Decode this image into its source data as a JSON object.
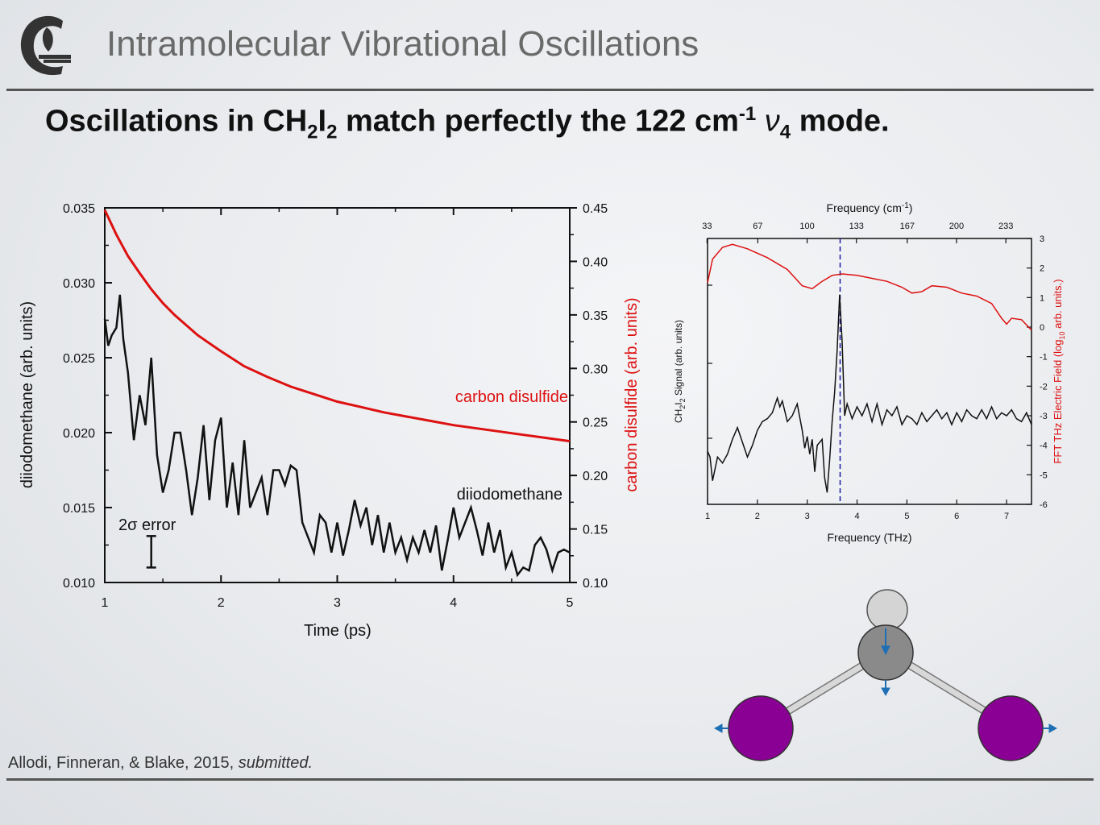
{
  "header": {
    "title": "Intramolecular Vibrational Oscillations",
    "headline": {
      "part1": "Oscillations in CH",
      "sub1": "2",
      "part2": "I",
      "sub2": "2",
      "part3": " match perfectly the 122 cm",
      "sup1": "-1",
      "nu": " ν",
      "sub3": "4",
      "part4": " mode."
    }
  },
  "citation": {
    "authors": "Allodi, Finneran, & Blake, 2015, ",
    "status": "submitted."
  },
  "colors": {
    "red": "#dd1111",
    "black": "#111111",
    "dashed": "#1a1aa0",
    "iodine": "#8b0094",
    "carbon": "#8a8a8a",
    "hydrogen": "#d4d4d4",
    "arrow": "#1f6fb5"
  },
  "chart_data": [
    {
      "type": "line",
      "xlabel": "Time (ps)",
      "ylabel": "diiodomethane (arb. units)",
      "y2label": "carbon disulfide (arb. units)",
      "xlim": [
        1,
        5
      ],
      "ylim": [
        0.01,
        0.035
      ],
      "y2lim": [
        0.1,
        0.45
      ],
      "xticks": [
        "1",
        "2",
        "3",
        "4",
        "5"
      ],
      "yticks": [
        "0.010",
        "0.015",
        "0.020",
        "0.025",
        "0.030",
        "0.035"
      ],
      "y2ticks": [
        "0.10",
        "0.15",
        "0.20",
        "0.25",
        "0.30",
        "0.35",
        "0.40",
        "0.45"
      ],
      "annotations": {
        "red_label": "carbon disulfide",
        "black_label": "diiodomethane",
        "error_label": "2σ error"
      },
      "error_bar": {
        "x": 1.4,
        "y_low": 0.011,
        "y_high": 0.0131
      },
      "series": [
        {
          "name": "carbon disulfide",
          "axis": "right",
          "x": [
            1.0,
            1.1,
            1.2,
            1.3,
            1.4,
            1.5,
            1.6,
            1.8,
            2.0,
            2.2,
            2.4,
            2.6,
            2.8,
            3.0,
            3.2,
            3.4,
            3.6,
            3.8,
            4.0,
            4.2,
            4.4,
            4.6,
            4.8,
            5.0
          ],
          "y": [
            0.448,
            0.425,
            0.405,
            0.389,
            0.374,
            0.361,
            0.35,
            0.331,
            0.316,
            0.302,
            0.292,
            0.283,
            0.276,
            0.269,
            0.264,
            0.259,
            0.255,
            0.251,
            0.247,
            0.244,
            0.241,
            0.238,
            0.235,
            0.232
          ]
        },
        {
          "name": "diiodomethane",
          "axis": "left",
          "x": [
            1.0,
            1.03,
            1.06,
            1.1,
            1.13,
            1.16,
            1.2,
            1.25,
            1.3,
            1.35,
            1.4,
            1.45,
            1.5,
            1.55,
            1.6,
            1.65,
            1.7,
            1.75,
            1.8,
            1.85,
            1.9,
            1.95,
            2.0,
            2.05,
            2.1,
            2.15,
            2.2,
            2.25,
            2.3,
            2.35,
            2.4,
            2.45,
            2.5,
            2.55,
            2.6,
            2.65,
            2.7,
            2.75,
            2.8,
            2.85,
            2.9,
            2.95,
            3.0,
            3.05,
            3.1,
            3.15,
            3.2,
            3.25,
            3.3,
            3.35,
            3.4,
            3.45,
            3.5,
            3.55,
            3.6,
            3.65,
            3.7,
            3.75,
            3.8,
            3.85,
            3.9,
            3.95,
            4.0,
            4.05,
            4.1,
            4.15,
            4.2,
            4.25,
            4.3,
            4.35,
            4.4,
            4.45,
            4.5,
            4.55,
            4.6,
            4.65,
            4.7,
            4.75,
            4.8,
            4.85,
            4.9,
            4.95,
            5.0
          ],
          "y": [
            0.0276,
            0.0258,
            0.0265,
            0.027,
            0.0292,
            0.0262,
            0.024,
            0.0195,
            0.0225,
            0.0205,
            0.025,
            0.0185,
            0.016,
            0.0175,
            0.02,
            0.02,
            0.0175,
            0.0145,
            0.017,
            0.0205,
            0.0155,
            0.0195,
            0.021,
            0.015,
            0.018,
            0.0145,
            0.0195,
            0.015,
            0.016,
            0.017,
            0.0145,
            0.0175,
            0.0175,
            0.0165,
            0.0178,
            0.0175,
            0.014,
            0.013,
            0.012,
            0.0145,
            0.014,
            0.012,
            0.014,
            0.0118,
            0.0135,
            0.0155,
            0.0138,
            0.015,
            0.0125,
            0.0145,
            0.012,
            0.014,
            0.012,
            0.013,
            0.0115,
            0.013,
            0.012,
            0.0135,
            0.012,
            0.0138,
            0.0108,
            0.0128,
            0.015,
            0.013,
            0.014,
            0.015,
            0.0135,
            0.0118,
            0.014,
            0.012,
            0.0135,
            0.011,
            0.012,
            0.0105,
            0.011,
            0.0108,
            0.0125,
            0.013,
            0.0122,
            0.0108,
            0.012,
            0.0122,
            0.012
          ]
        }
      ]
    },
    {
      "type": "line",
      "xlabel": "Frequency (THz)",
      "x2label_main": "Frequency (cm",
      "x2label_sup": "-1",
      "x2label_end": ")",
      "ylabel_main": "CH",
      "ylabel_sub1": "2",
      "ylabel_mid": "I",
      "ylabel_sub2": "2",
      "ylabel_end": " Signal (arb. units)",
      "y2label_main": "FFT THz Electric Field (log",
      "y2label_sub": "10",
      "y2label_end": " arb. units.)",
      "xlim": [
        1,
        7.5
      ],
      "y2lim": [
        -6,
        3
      ],
      "xticks": [
        "1",
        "2",
        "3",
        "4",
        "5",
        "6",
        "7"
      ],
      "x2ticks": [
        "33",
        "67",
        "100",
        "133",
        "167",
        "200",
        "233"
      ],
      "y2ticks": [
        "3",
        "2",
        "1",
        "0",
        "-1",
        "-2",
        "-3",
        "-4",
        "-5",
        "-6"
      ],
      "marker_line_x": 3.66,
      "series": [
        {
          "name": "FFT THz Electric Field",
          "axis": "right",
          "x": [
            1.0,
            1.1,
            1.3,
            1.5,
            1.8,
            2.2,
            2.6,
            2.9,
            3.1,
            3.3,
            3.5,
            3.7,
            4.0,
            4.3,
            4.6,
            4.9,
            5.1,
            5.3,
            5.5,
            5.8,
            6.1,
            6.4,
            6.7,
            6.9,
            7.0,
            7.1,
            7.3,
            7.5
          ],
          "y": [
            1.5,
            2.3,
            2.7,
            2.8,
            2.65,
            2.35,
            1.95,
            1.4,
            1.3,
            1.55,
            1.75,
            1.8,
            1.75,
            1.65,
            1.55,
            1.35,
            1.15,
            1.2,
            1.4,
            1.35,
            1.15,
            1.05,
            0.8,
            0.3,
            0.1,
            0.3,
            0.25,
            -0.1
          ]
        },
        {
          "name": "CH2I2 Signal",
          "axis": "left",
          "x": [
            1.0,
            1.05,
            1.1,
            1.15,
            1.2,
            1.3,
            1.4,
            1.5,
            1.6,
            1.7,
            1.8,
            1.9,
            2.0,
            2.1,
            2.2,
            2.3,
            2.4,
            2.45,
            2.5,
            2.6,
            2.7,
            2.8,
            2.9,
            2.95,
            3.0,
            3.05,
            3.1,
            3.15,
            3.2,
            3.3,
            3.35,
            3.4,
            3.45,
            3.5,
            3.55,
            3.6,
            3.65,
            3.7,
            3.75,
            3.8,
            3.9,
            4.0,
            4.1,
            4.2,
            4.3,
            4.4,
            4.5,
            4.6,
            4.7,
            4.8,
            4.9,
            5.0,
            5.1,
            5.2,
            5.3,
            5.4,
            5.5,
            5.6,
            5.7,
            5.8,
            5.9,
            6.0,
            6.1,
            6.2,
            6.3,
            6.4,
            6.5,
            6.6,
            6.7,
            6.8,
            6.9,
            7.0,
            7.1,
            7.2,
            7.3,
            7.4,
            7.5
          ],
          "y": [
            -4.2,
            -4.4,
            -5.2,
            -4.8,
            -4.4,
            -4.6,
            -4.3,
            -3.8,
            -3.4,
            -3.9,
            -4.4,
            -4.0,
            -3.5,
            -3.2,
            -3.1,
            -2.9,
            -2.4,
            -2.7,
            -2.5,
            -3.2,
            -3.0,
            -2.6,
            -3.5,
            -4.1,
            -3.7,
            -4.3,
            -3.8,
            -4.9,
            -4.0,
            -3.8,
            -5.1,
            -5.6,
            -4.5,
            -3.2,
            -2.2,
            -0.8,
            1.1,
            -0.5,
            -3.0,
            -2.6,
            -3.1,
            -2.7,
            -3.0,
            -2.6,
            -3.2,
            -2.6,
            -3.3,
            -2.8,
            -3.0,
            -2.7,
            -3.3,
            -3.0,
            -3.1,
            -3.3,
            -2.9,
            -3.2,
            -3.0,
            -2.8,
            -3.1,
            -2.9,
            -3.3,
            -2.9,
            -3.2,
            -2.8,
            -3.0,
            -3.1,
            -2.8,
            -3.1,
            -2.7,
            -3.1,
            -2.9,
            -3.0,
            -2.8,
            -3.1,
            -3.2,
            -2.9,
            -3.3
          ]
        }
      ]
    }
  ]
}
